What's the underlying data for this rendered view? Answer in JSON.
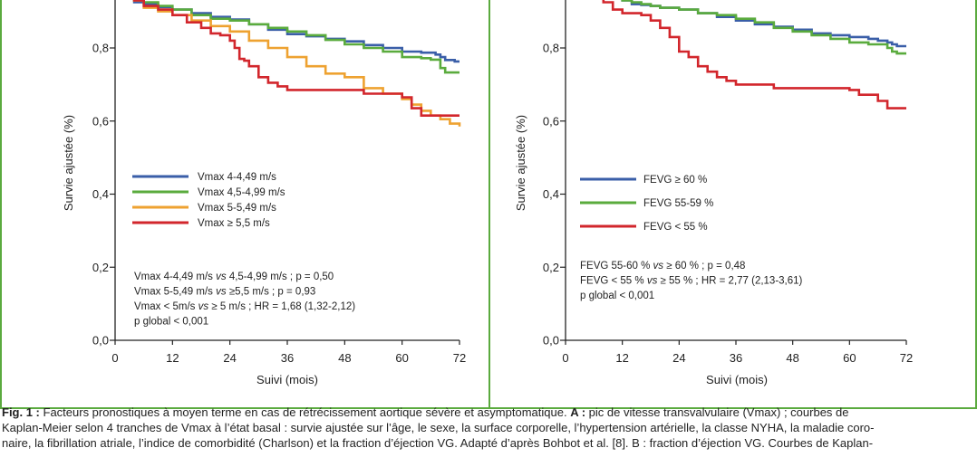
{
  "colors": {
    "frame": "#5aaa3e",
    "blue": "#3a5ea8",
    "green": "#5aab3d",
    "orange": "#eea231",
    "red": "#d2262c",
    "axis": "#222222"
  },
  "chart_data": [
    {
      "type": "line",
      "step": true,
      "xlabel": "Suivi (mois)",
      "ylabel": "Survie ajustée (%)",
      "xlim": [
        0,
        72
      ],
      "ylim": [
        0,
        1
      ],
      "xticks": [
        "0",
        "12",
        "24",
        "36",
        "48",
        "60",
        "72"
      ],
      "yticks": [
        "0,0",
        "0,2",
        "0,4",
        "0,6",
        "0,8"
      ],
      "grid": false,
      "legend_position": "center-left",
      "series": [
        {
          "name": "Vmax 4-4,49 m/s",
          "color": "blue",
          "x": [
            4,
            6,
            9,
            12,
            16,
            20,
            24,
            28,
            32,
            36,
            40,
            44,
            48,
            52,
            56,
            60,
            64,
            67,
            68,
            69,
            71,
            72
          ],
          "y": [
            0.925,
            0.92,
            0.912,
            0.905,
            0.895,
            0.885,
            0.878,
            0.865,
            0.85,
            0.838,
            0.832,
            0.825,
            0.818,
            0.808,
            0.8,
            0.79,
            0.787,
            0.782,
            0.775,
            0.767,
            0.763,
            0.763
          ]
        },
        {
          "name": "Vmax 4,5-4,99 m/s",
          "color": "green",
          "x": [
            4,
            6,
            9,
            12,
            16,
            20,
            24,
            28,
            32,
            36,
            40,
            44,
            48,
            52,
            56,
            60,
            64,
            66,
            68,
            69,
            72
          ],
          "y": [
            0.93,
            0.925,
            0.915,
            0.905,
            0.89,
            0.88,
            0.875,
            0.865,
            0.855,
            0.845,
            0.835,
            0.822,
            0.81,
            0.8,
            0.79,
            0.775,
            0.772,
            0.768,
            0.745,
            0.733,
            0.733
          ]
        },
        {
          "name": "Vmax 5-5,49 m/s",
          "color": "orange",
          "x": [
            4,
            6,
            9,
            12,
            16,
            20,
            24,
            28,
            32,
            36,
            40,
            44,
            48,
            52,
            56,
            60,
            62,
            64,
            66,
            68,
            70,
            72
          ],
          "y": [
            0.93,
            0.91,
            0.9,
            0.89,
            0.875,
            0.86,
            0.845,
            0.82,
            0.8,
            0.775,
            0.75,
            0.73,
            0.72,
            0.69,
            0.675,
            0.66,
            0.645,
            0.628,
            0.615,
            0.605,
            0.593,
            0.585
          ]
        },
        {
          "name": "Vmax ≥ 5,5 m/s",
          "color": "red",
          "x": [
            4,
            6,
            9,
            12,
            15,
            18,
            20,
            22,
            24,
            25,
            26,
            27,
            28,
            30,
            32,
            34,
            36,
            40,
            44,
            48,
            52,
            56,
            60,
            62,
            64,
            66,
            68,
            70,
            72
          ],
          "y": [
            0.93,
            0.915,
            0.905,
            0.89,
            0.87,
            0.855,
            0.84,
            0.835,
            0.82,
            0.8,
            0.77,
            0.765,
            0.75,
            0.72,
            0.705,
            0.695,
            0.685,
            0.685,
            0.685,
            0.685,
            0.675,
            0.675,
            0.665,
            0.635,
            0.615,
            0.615,
            0.615,
            0.615,
            0.615
          ]
        }
      ],
      "annotations": [
        {
          "label": "Vmax 4-4,49 m/s ",
          "vs": "vs",
          "rest": " 4,5-4,99 m/s ; p = 0,50"
        },
        {
          "label": "Vmax 5-5,49 m/s ",
          "vs": "vs",
          "rest": " ≥5,5 m/s ; p = 0,93"
        },
        {
          "label": "Vmax < 5m/s ",
          "vs": "vs",
          "rest": " ≥ 5 m/s ; HR = 1,68 (1,32-2,12)"
        },
        {
          "label": "p global < 0,001",
          "vs": "",
          "rest": ""
        }
      ]
    },
    {
      "type": "line",
      "step": true,
      "xlabel": "Suivi (mois)",
      "ylabel": "Survie ajustée (%)",
      "xlim": [
        0,
        72
      ],
      "ylim": [
        0,
        1
      ],
      "xticks": [
        "0",
        "12",
        "24",
        "36",
        "48",
        "60",
        "72"
      ],
      "yticks": [
        "0,0",
        "0,2",
        "0,4",
        "0,6",
        "0,8"
      ],
      "grid": false,
      "legend_position": "center-left",
      "series": [
        {
          "name": "FEVG ≥ 60 %",
          "color": "blue",
          "x": [
            12,
            14,
            16,
            18,
            20,
            24,
            28,
            32,
            36,
            40,
            44,
            48,
            52,
            56,
            60,
            64,
            66,
            68,
            69,
            70,
            72
          ],
          "y": [
            0.93,
            0.92,
            0.918,
            0.915,
            0.91,
            0.905,
            0.895,
            0.885,
            0.875,
            0.865,
            0.858,
            0.85,
            0.84,
            0.835,
            0.83,
            0.825,
            0.82,
            0.815,
            0.81,
            0.805,
            0.805
          ]
        },
        {
          "name": "FEVG 55-59 %",
          "color": "green",
          "x": [
            12,
            14,
            16,
            18,
            20,
            24,
            28,
            32,
            36,
            40,
            44,
            48,
            52,
            56,
            60,
            64,
            66,
            68,
            69,
            70,
            72
          ],
          "y": [
            0.93,
            0.925,
            0.92,
            0.915,
            0.91,
            0.905,
            0.895,
            0.89,
            0.88,
            0.87,
            0.855,
            0.845,
            0.835,
            0.825,
            0.815,
            0.81,
            0.81,
            0.8,
            0.79,
            0.785,
            0.785
          ]
        },
        {
          "name": "FEVG < 55 %",
          "color": "red",
          "x": [
            6,
            8,
            10,
            12,
            14,
            16,
            18,
            20,
            22,
            24,
            26,
            28,
            30,
            32,
            34,
            36,
            40,
            44,
            48,
            52,
            56,
            60,
            62,
            64,
            66,
            68,
            70,
            72
          ],
          "y": [
            0.935,
            0.925,
            0.905,
            0.895,
            0.895,
            0.89,
            0.875,
            0.855,
            0.83,
            0.79,
            0.775,
            0.75,
            0.735,
            0.72,
            0.71,
            0.7,
            0.7,
            0.69,
            0.69,
            0.69,
            0.69,
            0.685,
            0.672,
            0.672,
            0.655,
            0.635,
            0.635,
            0.635
          ]
        }
      ],
      "annotations": [
        {
          "label": "FEVG 55-60 % ",
          "vs": "vs",
          "rest": " ≥ 60 % ; p = 0,48"
        },
        {
          "label": "FEVG < 55 % ",
          "vs": "vs",
          "rest": " ≥ 55 % ; HR = 2,77 (2,13-3,61)"
        },
        {
          "label": "p global < 0,001",
          "vs": "",
          "rest": ""
        }
      ]
    }
  ],
  "caption": {
    "fig_label": "Fig. 1 : ",
    "line1_text": "Facteurs pronostiques à moyen terme en cas de rétrécissement aortique sévère et asymptomatique. ",
    "line1_bold_a": "A :",
    "line1_rest": " pic de vitesse transvalvulaire (Vmax) ; courbes de",
    "line2": "Kaplan-Meier selon 4 tranches de Vmax à l’état basal : survie ajustée sur l’âge, le sexe, la surface corporelle, l’hypertension artérielle, la classe NYHA, la maladie coro-",
    "line3": "naire, la fibrillation atriale, l’indice de comorbidité (Charlson) et la fraction d’éjection VG. Adapté d’après Bohbot et al. [8]. B : fraction d’éjection VG. Courbes de Kaplan-"
  }
}
